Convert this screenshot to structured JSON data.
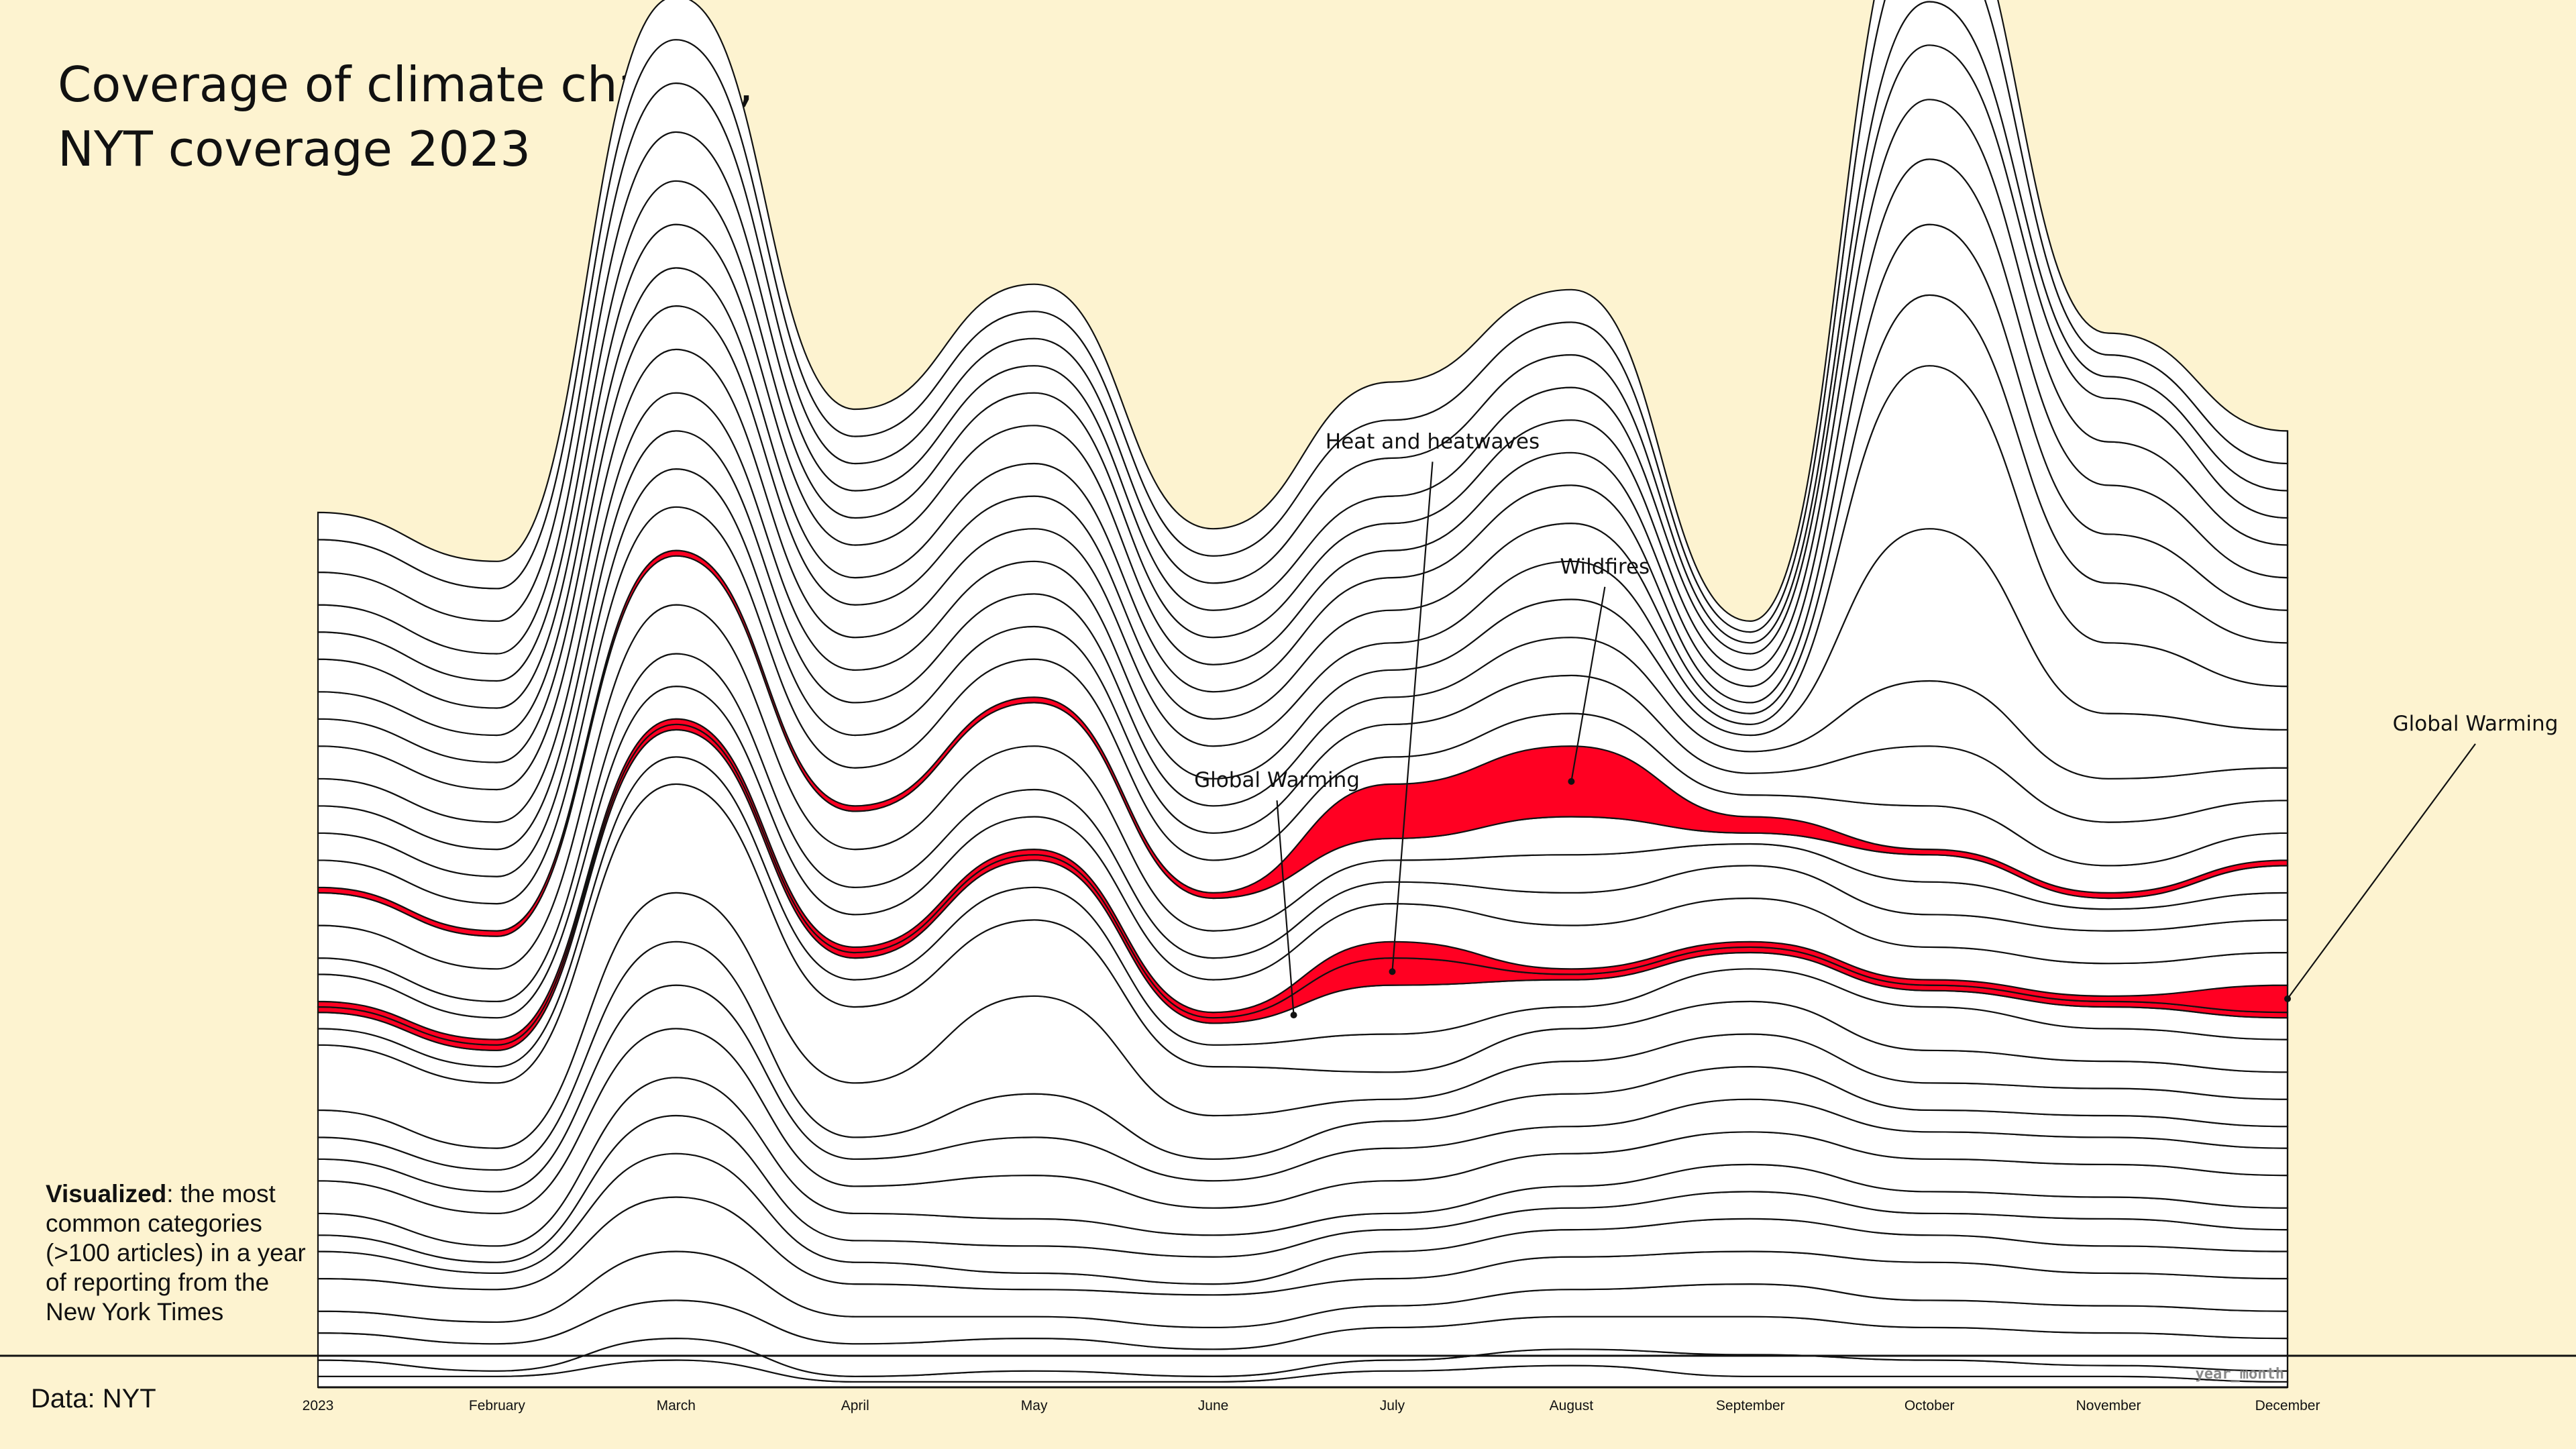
{
  "title_lines": [
    "Coverage of climate change,",
    "NYT coverage 2023"
  ],
  "note": {
    "bold": "Visualized",
    "rest": ": the most common categories (>100 articles) in a year of reporting from the New York Times"
  },
  "source": "Data: NYT",
  "colors": {
    "background": "#fdf3d0",
    "stream_fill": "#ffffff",
    "stream_stroke": "#111111",
    "highlight": "#ff0022"
  },
  "chart_data": {
    "type": "area",
    "subtype": "streamgraph",
    "xlabel": "year_month",
    "ylabel": "",
    "x": [
      "2023",
      "February",
      "March",
      "April",
      "May",
      "June",
      "July",
      "August",
      "September",
      "October",
      "November",
      "December"
    ],
    "series": [
      {
        "values": [
          2,
          2,
          5,
          1,
          1,
          1,
          3,
          4,
          2,
          2,
          2,
          1
        ]
      },
      {
        "values": [
          3,
          1,
          4,
          1,
          2,
          1,
          2,
          3,
          4,
          3,
          2,
          2
        ]
      },
      {
        "values": [
          5,
          5,
          7,
          6,
          6,
          5,
          6,
          6,
          7,
          6,
          6,
          6
        ]
      },
      {
        "values": [
          4,
          4,
          9,
          5,
          4,
          4,
          4,
          5,
          6,
          5,
          5,
          5
        ]
      },
      {
        "values": [
          6,
          6,
          10,
          6,
          5,
          6,
          5,
          6,
          6,
          7,
          6,
          6
        ]
      },
      {
        "values": [
          5,
          3,
          8,
          4,
          3,
          2,
          5,
          5,
          6,
          5,
          5,
          5
        ]
      },
      {
        "values": [
          3,
          2,
          7,
          4,
          5,
          5,
          4,
          4,
          5,
          4,
          5,
          4
        ]
      },
      {
        "values": [
          4,
          3,
          7,
          5,
          5,
          4,
          3,
          4,
          5,
          4,
          4,
          4
        ]
      },
      {
        "values": [
          6,
          6,
          9,
          5,
          8,
          5,
          6,
          6,
          6,
          6,
          6,
          6
        ]
      },
      {
        "values": [
          4,
          4,
          8,
          5,
          7,
          5,
          6,
          5,
          6,
          5,
          5,
          5
        ]
      },
      {
        "values": [
          4,
          4,
          8,
          4,
          8,
          4,
          5,
          6,
          6,
          4,
          4,
          4
        ]
      },
      {
        "values": [
          5,
          4,
          9,
          10,
          18,
          8,
          4,
          6,
          6,
          5,
          5,
          5
        ]
      },
      {
        "values": [
          12,
          12,
          20,
          14,
          14,
          9,
          5,
          6,
          6,
          6,
          5,
          5
        ]
      },
      {
        "values": [
          3,
          3,
          5,
          5,
          6,
          4,
          7,
          4,
          6,
          8,
          6,
          6
        ]
      },
      {
        "values": [
          3,
          3,
          5,
          4,
          5,
          4,
          9,
          5,
          3,
          3,
          4,
          4
        ]
      },
      {
        "name": "Heat and heatwaves",
        "values": [
          1,
          1,
          1,
          1,
          1,
          1,
          5,
          1,
          1,
          1,
          1,
          1
        ]
      },
      {
        "name": "Global Warming",
        "values": [
          1,
          1,
          1,
          1,
          1,
          1,
          3,
          1,
          1,
          1,
          1,
          5
        ]
      },
      {
        "values": [
          5,
          4,
          6,
          6,
          6,
          6,
          7,
          8,
          8,
          6,
          6,
          6
        ]
      },
      {
        "values": [
          3,
          3,
          6,
          5,
          5,
          4,
          4,
          6,
          6,
          6,
          6,
          6
        ]
      },
      {
        "values": [
          6,
          6,
          9,
          7,
          8,
          5,
          4,
          7,
          4,
          6,
          4,
          5
        ]
      },
      {
        "values": [
          6,
          6,
          9,
          7,
          8,
          6,
          4,
          7,
          2,
          5,
          2,
          5
        ]
      },
      {
        "name": "Wildfires",
        "values": [
          1,
          1,
          1,
          1,
          1,
          1,
          10,
          13,
          3,
          1,
          1,
          1
        ]
      },
      {
        "values": [
          5,
          5,
          8,
          7,
          7,
          6,
          5,
          6,
          4,
          8,
          5,
          5
        ]
      },
      {
        "values": [
          5,
          5,
          7,
          6,
          6,
          5,
          6,
          7,
          4,
          11,
          8,
          6
        ]
      },
      {
        "values": [
          5,
          5,
          7,
          6,
          6,
          5,
          5,
          7,
          4,
          12,
          8,
          6
        ]
      },
      {
        "values": [
          5,
          5,
          7,
          6,
          6,
          5,
          5,
          7,
          3,
          28,
          12,
          7
        ]
      },
      {
        "values": [
          6,
          6,
          8,
          6,
          6,
          6,
          5,
          7,
          2,
          30,
          13,
          8
        ]
      },
      {
        "values": [
          5,
          5,
          8,
          6,
          6,
          5,
          6,
          7,
          2,
          13,
          11,
          8
        ]
      },
      {
        "values": [
          5,
          5,
          7,
          5,
          6,
          5,
          6,
          7,
          2,
          13,
          9,
          6
        ]
      },
      {
        "values": [
          6,
          5,
          8,
          6,
          7,
          5,
          5,
          6,
          3,
          12,
          9,
          6
        ]
      },
      {
        "values": [
          5,
          5,
          8,
          5,
          6,
          5,
          5,
          6,
          3,
          11,
          8,
          6
        ]
      },
      {
        "values": [
          5,
          5,
          9,
          5,
          5,
          5,
          5,
          6,
          3,
          10,
          8,
          5
        ]
      },
      {
        "values": [
          6,
          6,
          9,
          5,
          5,
          5,
          7,
          6,
          2,
          8,
          4,
          5
        ]
      },
      {
        "values": [
          6,
          6,
          8,
          5,
          5,
          5,
          7,
          6,
          2,
          14,
          4,
          5
        ]
      },
      {
        "values": [
          5,
          5,
          8,
          5,
          5,
          5,
          7,
          6,
          2,
          10,
          4,
          6
        ]
      }
    ],
    "highlight_series": [
      "Heat and heatwaves",
      "Global Warming",
      "Wildfires"
    ],
    "annotations": [
      {
        "text": "Global Warming",
        "series": "Global Warming",
        "x": "June"
      },
      {
        "text": "Heat and heatwaves",
        "series": "Heat and heatwaves",
        "x": "July"
      },
      {
        "text": "Wildfires",
        "series": "Wildfires",
        "x": "August"
      },
      {
        "text": "Global Warming",
        "series": "Global Warming",
        "x": "December"
      }
    ],
    "grid": false,
    "legend": "none"
  }
}
